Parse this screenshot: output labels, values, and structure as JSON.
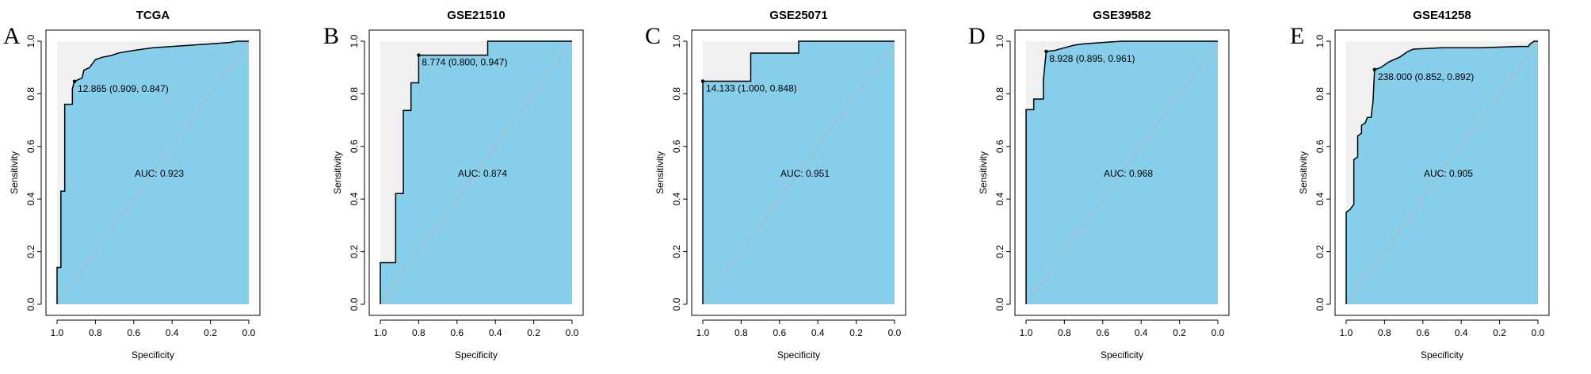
{
  "chart_data": [
    {
      "type": "line",
      "panel": "A",
      "title": "TCGA",
      "xlabel": "Specificity",
      "ylabel": "Sensitivity",
      "xlim": [
        1.0,
        0.0
      ],
      "ylim": [
        0.0,
        1.0
      ],
      "x_ticks": [
        "1.0",
        "0.8",
        "0.6",
        "0.4",
        "0.2",
        "0.0"
      ],
      "y_ticks": [
        "0.0",
        "0.2",
        "0.4",
        "0.6",
        "0.8",
        "1.0"
      ],
      "auc_text": "AUC: 0.923",
      "threshold_text": "12.865 (0.909, 0.847)",
      "best_point": {
        "specificity": 0.909,
        "sensitivity": 0.847
      },
      "curve": [
        [
          1.0,
          0.0
        ],
        [
          1.0,
          0.14
        ],
        [
          0.98,
          0.14
        ],
        [
          0.98,
          0.43
        ],
        [
          0.96,
          0.43
        ],
        [
          0.96,
          0.76
        ],
        [
          0.92,
          0.76
        ],
        [
          0.92,
          0.82
        ],
        [
          0.909,
          0.847
        ],
        [
          0.87,
          0.86
        ],
        [
          0.86,
          0.89
        ],
        [
          0.83,
          0.9
        ],
        [
          0.8,
          0.93
        ],
        [
          0.76,
          0.94
        ],
        [
          0.72,
          0.945
        ],
        [
          0.68,
          0.955
        ],
        [
          0.6,
          0.965
        ],
        [
          0.5,
          0.975
        ],
        [
          0.4,
          0.98
        ],
        [
          0.3,
          0.985
        ],
        [
          0.2,
          0.99
        ],
        [
          0.1,
          0.995
        ],
        [
          0.06,
          1.0
        ],
        [
          0.0,
          1.0
        ]
      ]
    },
    {
      "type": "line",
      "panel": "B",
      "title": "GSE21510",
      "xlabel": "Specificity",
      "ylabel": "Sensitivity",
      "xlim": [
        1.0,
        0.0
      ],
      "ylim": [
        0.0,
        1.0
      ],
      "x_ticks": [
        "1.0",
        "0.8",
        "0.6",
        "0.4",
        "0.2",
        "0.0"
      ],
      "y_ticks": [
        "0.0",
        "0.2",
        "0.4",
        "0.6",
        "0.8",
        "1.0"
      ],
      "auc_text": "AUC: 0.874",
      "threshold_text": "8.774 (0.800, 0.947)",
      "best_point": {
        "specificity": 0.8,
        "sensitivity": 0.947
      },
      "curve": [
        [
          1.0,
          0.0
        ],
        [
          1.0,
          0.158
        ],
        [
          0.92,
          0.158
        ],
        [
          0.92,
          0.421
        ],
        [
          0.88,
          0.421
        ],
        [
          0.88,
          0.737
        ],
        [
          0.84,
          0.737
        ],
        [
          0.84,
          0.842
        ],
        [
          0.8,
          0.842
        ],
        [
          0.8,
          0.947
        ],
        [
          0.44,
          0.947
        ],
        [
          0.44,
          1.0
        ],
        [
          0.0,
          1.0
        ]
      ]
    },
    {
      "type": "line",
      "panel": "C",
      "title": "GSE25071",
      "xlabel": "Specificity",
      "ylabel": "Sensitivity",
      "xlim": [
        1.0,
        0.0
      ],
      "ylim": [
        0.0,
        1.0
      ],
      "x_ticks": [
        "1.0",
        "0.8",
        "0.6",
        "0.4",
        "0.2",
        "0.0"
      ],
      "y_ticks": [
        "0.0",
        "0.2",
        "0.4",
        "0.6",
        "0.8",
        "1.0"
      ],
      "auc_text": "AUC: 0.951",
      "threshold_text": "14.133 (1.000, 0.848)",
      "best_point": {
        "specificity": 1.0,
        "sensitivity": 0.848
      },
      "curve": [
        [
          1.0,
          0.0
        ],
        [
          1.0,
          0.848
        ],
        [
          0.75,
          0.848
        ],
        [
          0.75,
          0.955
        ],
        [
          0.5,
          0.955
        ],
        [
          0.5,
          1.0
        ],
        [
          0.0,
          1.0
        ]
      ]
    },
    {
      "type": "line",
      "panel": "D",
      "title": "GSE39582",
      "xlabel": "Specificity",
      "ylabel": "Sensitivity",
      "xlim": [
        1.0,
        0.0
      ],
      "ylim": [
        0.0,
        1.0
      ],
      "x_ticks": [
        "1.0",
        "0.8",
        "0.6",
        "0.4",
        "0.2",
        "0.0"
      ],
      "y_ticks": [
        "0.0",
        "0.2",
        "0.4",
        "0.6",
        "0.8",
        "1.0"
      ],
      "auc_text": "AUC: 0.968",
      "threshold_text": "8.928 (0.895, 0.961)",
      "best_point": {
        "specificity": 0.895,
        "sensitivity": 0.961
      },
      "curve": [
        [
          1.0,
          0.0
        ],
        [
          1.0,
          0.74
        ],
        [
          0.96,
          0.74
        ],
        [
          0.96,
          0.78
        ],
        [
          0.91,
          0.78
        ],
        [
          0.91,
          0.85
        ],
        [
          0.895,
          0.961
        ],
        [
          0.85,
          0.965
        ],
        [
          0.8,
          0.975
        ],
        [
          0.75,
          0.985
        ],
        [
          0.7,
          0.99
        ],
        [
          0.6,
          0.995
        ],
        [
          0.5,
          1.0
        ],
        [
          0.0,
          1.0
        ]
      ]
    },
    {
      "type": "line",
      "panel": "E",
      "title": "GSE41258",
      "xlabel": "Specificity",
      "ylabel": "Sensitivity",
      "xlim": [
        1.0,
        0.0
      ],
      "ylim": [
        0.0,
        1.0
      ],
      "x_ticks": [
        "1.0",
        "0.8",
        "0.6",
        "0.4",
        "0.2",
        "0.0"
      ],
      "y_ticks": [
        "0.0",
        "0.2",
        "0.4",
        "0.6",
        "0.8",
        "1.0"
      ],
      "auc_text": "AUC: 0.905",
      "threshold_text": "238.000 (0.852, 0.892)",
      "best_point": {
        "specificity": 0.852,
        "sensitivity": 0.892
      },
      "curve": [
        [
          1.0,
          0.0
        ],
        [
          1.0,
          0.35
        ],
        [
          0.98,
          0.36
        ],
        [
          0.96,
          0.38
        ],
        [
          0.96,
          0.55
        ],
        [
          0.94,
          0.56
        ],
        [
          0.94,
          0.64
        ],
        [
          0.92,
          0.65
        ],
        [
          0.92,
          0.68
        ],
        [
          0.9,
          0.69
        ],
        [
          0.89,
          0.71
        ],
        [
          0.87,
          0.71
        ],
        [
          0.86,
          0.77
        ],
        [
          0.852,
          0.892
        ],
        [
          0.82,
          0.9
        ],
        [
          0.8,
          0.91
        ],
        [
          0.78,
          0.92
        ],
        [
          0.75,
          0.93
        ],
        [
          0.72,
          0.94
        ],
        [
          0.7,
          0.95
        ],
        [
          0.68,
          0.96
        ],
        [
          0.65,
          0.97
        ],
        [
          0.5,
          0.975
        ],
        [
          0.3,
          0.975
        ],
        [
          0.1,
          0.98
        ],
        [
          0.05,
          0.98
        ],
        [
          0.04,
          0.99
        ],
        [
          0.02,
          1.0
        ],
        [
          0.0,
          1.0
        ]
      ]
    }
  ],
  "colors": {
    "auc_fill": "#87ceeb",
    "plot_fill": "#f0f0f0",
    "curve": "#000000",
    "diagonal": "#b3b3b3"
  }
}
